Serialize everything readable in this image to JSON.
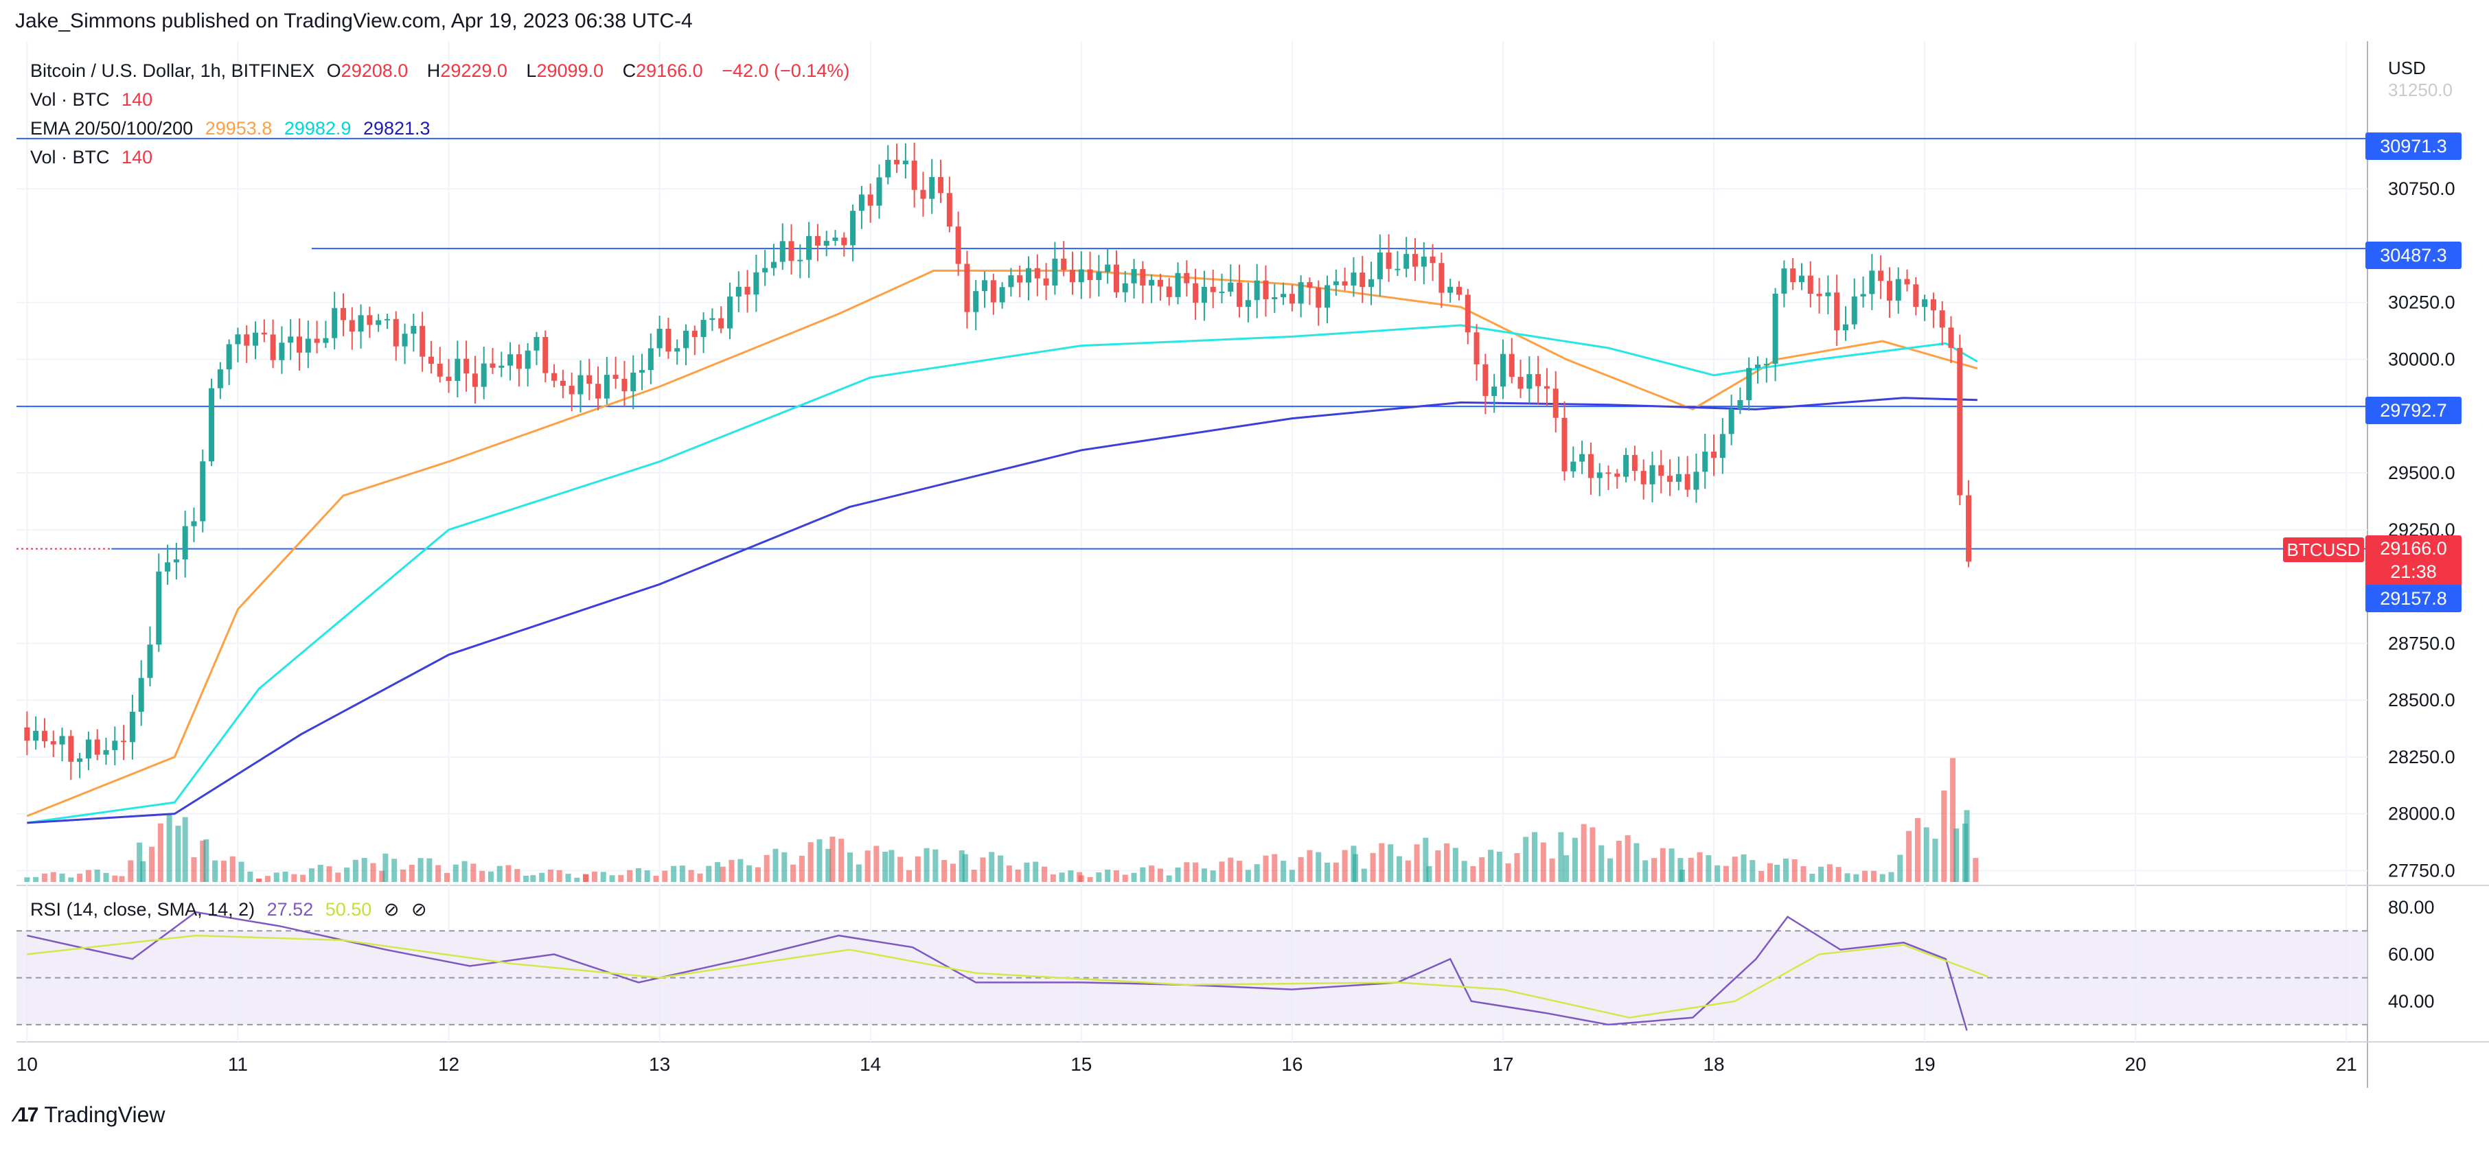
{
  "header": {
    "publish_line": "Jake_Simmons published on TradingView.com, Apr 19, 2023 06:38 UTC-4"
  },
  "legend": {
    "symbol": "Bitcoin / U.S. Dollar, 1h, BITFINEX",
    "open_label": "O",
    "open": "29208.0",
    "high_label": "H",
    "high": "29229.0",
    "low_label": "L",
    "low": "29099.0",
    "close_label": "C",
    "close": "29166.0",
    "change": "−42.0 (−0.14%)",
    "vol_label": "Vol · BTC",
    "vol_value": "140",
    "ema_label": "EMA 20/50/100/200",
    "ema_values": [
      "29953.8",
      "29982.9",
      "29821.3"
    ],
    "vol2_label": "Vol · BTC",
    "vol2_value": "140"
  },
  "rsi_legend": {
    "label": "RSI (14, close, SMA, 14, 2)",
    "rsi_value": "27.52",
    "sma_value": "50.50",
    "icons": [
      "circle-slash-icon",
      "circle-slash-icon"
    ]
  },
  "price_axis": {
    "currency": "USD",
    "ticks": [
      "30750.0",
      "30250.0",
      "30000.0",
      "29500.0",
      "29250.0",
      "28750.0",
      "28500.0",
      "28250.0",
      "28000.0",
      "27750.0"
    ],
    "faded_tick": "31250.0"
  },
  "rsi_axis": {
    "ticks": [
      "80.00",
      "60.00",
      "40.00"
    ]
  },
  "time_axis": {
    "ticks": [
      "10",
      "11",
      "12",
      "13",
      "14",
      "15",
      "16",
      "17",
      "18",
      "19",
      "20",
      "21"
    ]
  },
  "price_labels": {
    "level_1": "30971.3",
    "level_2": "30487.3",
    "level_3": "29792.7",
    "symbol_tag": "BTCUSD",
    "last_price": "29166.0",
    "countdown": "21:38",
    "level_4": "29157.8"
  },
  "footer": {
    "brand": "TradingView"
  },
  "colors": {
    "up": "#26a69a",
    "down": "#ef5350",
    "ema20": "#ff9f43",
    "ema50": "#26e6e6",
    "ema200": "#3c3fd9",
    "level_line": "#2962ff",
    "rsi_line": "#7e57c2",
    "rsi_sma": "#d4e84a"
  },
  "chart_data": {
    "type": "candlestick",
    "title": "Bitcoin / U.S. Dollar, 1h, BITFINEX",
    "x_unit": "day of April 2023",
    "xlim": [
      9.95,
      21.1
    ],
    "ylim": [
      27700,
      31400
    ],
    "horizontal_levels": [
      30971.3,
      30487.3,
      29792.7,
      29157.8
    ],
    "last_price": 29166.0,
    "price_path": [
      [
        10.0,
        28380
      ],
      [
        10.1,
        28310
      ],
      [
        10.3,
        28260
      ],
      [
        10.4,
        28300
      ],
      [
        10.5,
        28400
      ],
      [
        10.55,
        28600
      ],
      [
        10.62,
        29050
      ],
      [
        10.7,
        29110
      ],
      [
        10.8,
        29350
      ],
      [
        10.85,
        29700
      ],
      [
        10.95,
        30100
      ],
      [
        11.1,
        30080
      ],
      [
        11.3,
        30050
      ],
      [
        11.5,
        30180
      ],
      [
        11.7,
        30150
      ],
      [
        11.85,
        30080
      ],
      [
        11.95,
        29930
      ],
      [
        12.2,
        29950
      ],
      [
        12.4,
        30050
      ],
      [
        12.55,
        29860
      ],
      [
        12.7,
        29900
      ],
      [
        12.85,
        29880
      ],
      [
        12.95,
        30050
      ],
      [
        13.15,
        30100
      ],
      [
        13.35,
        30250
      ],
      [
        13.5,
        30420
      ],
      [
        13.65,
        30480
      ],
      [
        13.85,
        30530
      ],
      [
        14.0,
        30730
      ],
      [
        14.1,
        30900
      ],
      [
        14.2,
        30780
      ],
      [
        14.35,
        30720
      ],
      [
        14.45,
        30250
      ],
      [
        14.6,
        30320
      ],
      [
        14.8,
        30380
      ],
      [
        15.0,
        30380
      ],
      [
        15.3,
        30340
      ],
      [
        15.6,
        30300
      ],
      [
        15.85,
        30280
      ],
      [
        16.1,
        30290
      ],
      [
        16.3,
        30350
      ],
      [
        16.55,
        30450
      ],
      [
        16.7,
        30380
      ],
      [
        16.82,
        30200
      ],
      [
        16.9,
        29850
      ],
      [
        17.0,
        29950
      ],
      [
        17.2,
        29880
      ],
      [
        17.3,
        29550
      ],
      [
        17.45,
        29500
      ],
      [
        17.65,
        29520
      ],
      [
        17.8,
        29460
      ],
      [
        17.95,
        29510
      ],
      [
        18.1,
        29800
      ],
      [
        18.25,
        30050
      ],
      [
        18.32,
        30380
      ],
      [
        18.45,
        30340
      ],
      [
        18.6,
        30150
      ],
      [
        18.75,
        30360
      ],
      [
        18.9,
        30300
      ],
      [
        19.05,
        30230
      ],
      [
        19.12,
        30050
      ],
      [
        19.17,
        29400
      ],
      [
        19.2,
        29150
      ],
      [
        19.25,
        29166
      ]
    ],
    "volume": [
      [
        10.0,
        10
      ],
      [
        10.45,
        18
      ],
      [
        10.55,
        55
      ],
      [
        10.75,
        105
      ],
      [
        10.85,
        60
      ],
      [
        11.1,
        8
      ],
      [
        11.7,
        35
      ],
      [
        12.4,
        18
      ],
      [
        12.65,
        12
      ],
      [
        13.3,
        25
      ],
      [
        13.82,
        58
      ],
      [
        14.1,
        40
      ],
      [
        14.45,
        45
      ],
      [
        15.0,
        12
      ],
      [
        16.3,
        45
      ],
      [
        16.65,
        55
      ],
      [
        16.9,
        35
      ],
      [
        17.3,
        80
      ],
      [
        17.85,
        38
      ],
      [
        18.3,
        32
      ],
      [
        18.8,
        12
      ],
      [
        19.15,
        160
      ],
      [
        19.2,
        90
      ],
      [
        19.25,
        20
      ]
    ],
    "ema_series": [
      {
        "name": "EMA 20",
        "values": [
          [
            10.0,
            27990
          ],
          [
            10.7,
            28250
          ],
          [
            11.0,
            28900
          ],
          [
            11.5,
            29400
          ],
          [
            12.0,
            29550
          ],
          [
            13.0,
            29880
          ],
          [
            13.85,
            30200
          ],
          [
            14.3,
            30390
          ],
          [
            15.0,
            30390
          ],
          [
            16.0,
            30330
          ],
          [
            16.8,
            30230
          ],
          [
            17.3,
            30000
          ],
          [
            17.9,
            29780
          ],
          [
            18.3,
            30000
          ],
          [
            18.8,
            30080
          ],
          [
            19.25,
            29960
          ]
        ]
      },
      {
        "name": "EMA 50",
        "values": [
          [
            10.0,
            27960
          ],
          [
            10.7,
            28050
          ],
          [
            11.1,
            28550
          ],
          [
            12.0,
            29250
          ],
          [
            13.0,
            29550
          ],
          [
            14.0,
            29920
          ],
          [
            15.0,
            30060
          ],
          [
            16.0,
            30100
          ],
          [
            16.8,
            30150
          ],
          [
            17.5,
            30050
          ],
          [
            18.0,
            29930
          ],
          [
            18.5,
            30000
          ],
          [
            19.1,
            30070
          ],
          [
            19.25,
            29990
          ]
        ]
      },
      {
        "name": "EMA 200",
        "values": [
          [
            10.0,
            27960
          ],
          [
            10.7,
            28000
          ],
          [
            11.3,
            28350
          ],
          [
            12.0,
            28700
          ],
          [
            13.0,
            29010
          ],
          [
            13.9,
            29350
          ],
          [
            15.0,
            29600
          ],
          [
            16.0,
            29740
          ],
          [
            16.8,
            29810
          ],
          [
            17.5,
            29800
          ],
          [
            18.2,
            29780
          ],
          [
            18.9,
            29830
          ],
          [
            19.25,
            29821
          ]
        ]
      }
    ],
    "rsi": {
      "ylim": [
        25,
        85
      ],
      "bands": [
        70,
        50,
        30
      ],
      "values": [
        [
          10.0,
          68
        ],
        [
          10.5,
          58
        ],
        [
          10.8,
          78
        ],
        [
          11.2,
          72
        ],
        [
          11.7,
          62
        ],
        [
          12.1,
          55
        ],
        [
          12.5,
          60
        ],
        [
          12.9,
          48
        ],
        [
          13.4,
          58
        ],
        [
          13.85,
          68
        ],
        [
          14.2,
          63
        ],
        [
          14.5,
          48
        ],
        [
          15.0,
          48
        ],
        [
          15.5,
          47
        ],
        [
          16.0,
          45
        ],
        [
          16.5,
          48
        ],
        [
          16.75,
          58
        ],
        [
          16.85,
          40
        ],
        [
          17.2,
          35
        ],
        [
          17.5,
          30
        ],
        [
          17.9,
          33
        ],
        [
          18.2,
          58
        ],
        [
          18.35,
          76
        ],
        [
          18.6,
          62
        ],
        [
          18.9,
          65
        ],
        [
          19.1,
          58
        ],
        [
          19.2,
          27.5
        ]
      ],
      "sma": [
        [
          10.0,
          60
        ],
        [
          10.8,
          68
        ],
        [
          11.5,
          66
        ],
        [
          12.3,
          56
        ],
        [
          13.0,
          50
        ],
        [
          13.9,
          62
        ],
        [
          14.5,
          52
        ],
        [
          15.5,
          47
        ],
        [
          16.5,
          48
        ],
        [
          17.0,
          45
        ],
        [
          17.6,
          33
        ],
        [
          18.1,
          40
        ],
        [
          18.5,
          60
        ],
        [
          18.9,
          64
        ],
        [
          19.3,
          50.5
        ]
      ]
    }
  }
}
